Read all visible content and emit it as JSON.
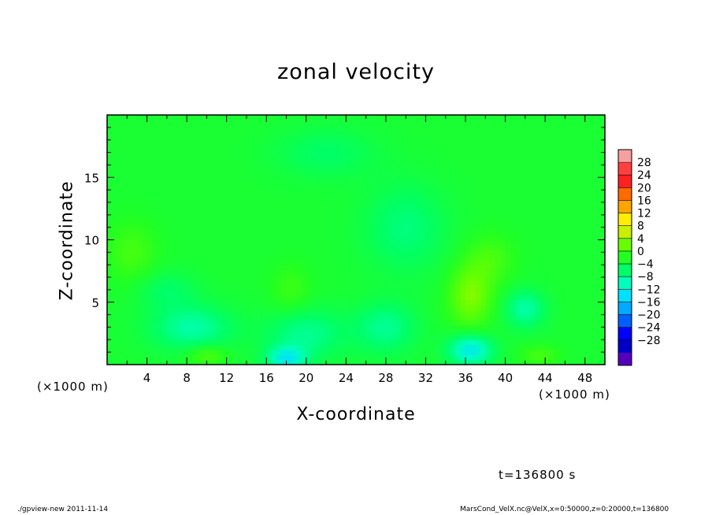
{
  "chart_data": {
    "type": "heatmap",
    "title": "zonal velocity",
    "xlabel": "X-coordinate",
    "ylabel": "Z-coordinate",
    "x_unit": "(×1000 m)",
    "x_ticks": [
      4,
      8,
      12,
      16,
      20,
      24,
      28,
      32,
      36,
      40,
      44,
      48
    ],
    "y_ticks": [
      5,
      10,
      15
    ],
    "xlim": [
      0,
      50
    ],
    "ylim": [
      0,
      20
    ],
    "colorbar": {
      "levels": [
        28,
        24,
        20,
        16,
        12,
        8,
        4,
        0,
        -4,
        -8,
        -12,
        -16,
        -20,
        -24,
        -28
      ],
      "labels": [
        "28",
        "24",
        "20",
        "16",
        "12",
        "8",
        "4",
        "0",
        "−4",
        "−8",
        "−12",
        "−16",
        "−20",
        "−24",
        "−28"
      ],
      "colors_top_to_bottom": [
        "#f5a0a0",
        "#ff4040",
        "#ff2020",
        "#ff6a00",
        "#ffa500",
        "#ffee00",
        "#c8f000",
        "#66ff00",
        "#22ff22",
        "#00ff66",
        "#00ffbb",
        "#00e0ff",
        "#00aaff",
        "#0060ff",
        "#0000ff",
        "#0000c8",
        "#5500bb"
      ]
    },
    "field": {
      "base_value": -1,
      "features": [
        {
          "x": 36.5,
          "z": 5.5,
          "sx": 2.2,
          "sz": 2.5,
          "value": 6
        },
        {
          "x": 38.5,
          "z": 8.5,
          "sx": 2.5,
          "sz": 2.0,
          "value": 3
        },
        {
          "x": 2.5,
          "z": 9.0,
          "sx": 2.5,
          "sz": 2.5,
          "value": 3
        },
        {
          "x": 18.5,
          "z": 6.0,
          "sx": 2.0,
          "sz": 2.0,
          "value": 2.5
        },
        {
          "x": 10.0,
          "z": 0.8,
          "sx": 2.0,
          "sz": 0.8,
          "value": 4
        },
        {
          "x": 43.5,
          "z": 0.8,
          "sx": 2.0,
          "sz": 0.8,
          "value": 3
        },
        {
          "x": 8.5,
          "z": 3.0,
          "sx": 4.0,
          "sz": 1.8,
          "value": -6
        },
        {
          "x": 20.0,
          "z": 2.5,
          "sx": 4.0,
          "sz": 2.0,
          "value": -5
        },
        {
          "x": 18.0,
          "z": 0.5,
          "sx": 2.0,
          "sz": 1.0,
          "value": -9
        },
        {
          "x": 36.5,
          "z": 1.2,
          "sx": 2.2,
          "sz": 1.2,
          "value": -10
        },
        {
          "x": 28.0,
          "z": 3.0,
          "sx": 3.0,
          "sz": 2.0,
          "value": -5
        },
        {
          "x": 30.0,
          "z": 11.0,
          "sx": 4.0,
          "sz": 3.5,
          "value": -4
        },
        {
          "x": 22.0,
          "z": 17.0,
          "sx": 5.0,
          "sz": 2.0,
          "value": -3
        },
        {
          "x": 42.0,
          "z": 4.5,
          "sx": 2.0,
          "sz": 1.5,
          "value": -6
        },
        {
          "x": 6.0,
          "z": 6.0,
          "sx": 3.0,
          "sz": 1.5,
          "value": -3
        }
      ]
    }
  },
  "labels": {
    "time": "t=136800 s",
    "footer_left": "./gpview-new  2011-11-14",
    "footer_right": "MarsCond_VelX.nc@VelX,x=0:50000,z=0:20000,t=136800"
  }
}
